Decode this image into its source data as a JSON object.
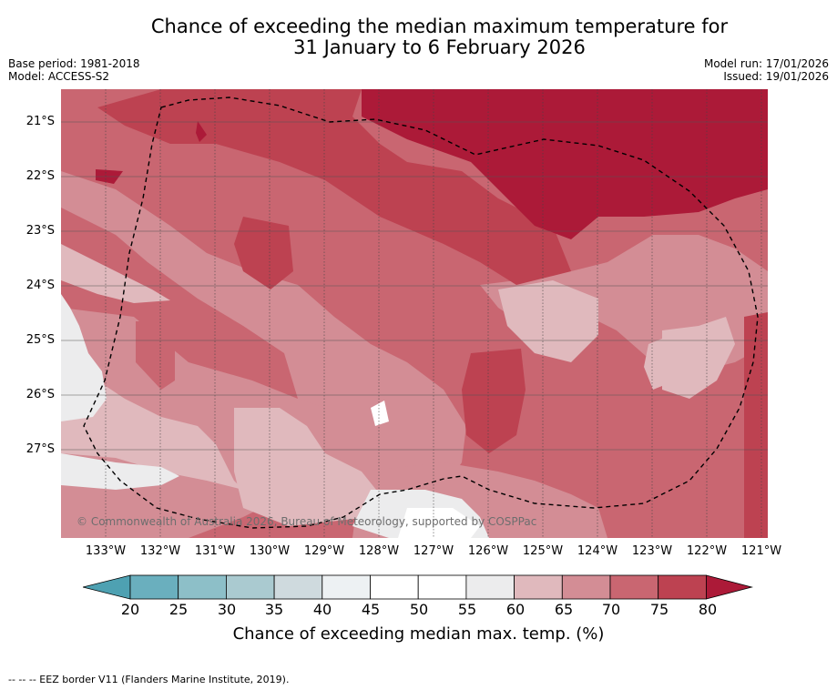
{
  "title_line1": "Chance of exceeding the median maximum temperature for",
  "title_line2": "31 January to 6 February 2026",
  "base_period": "Base period: 1981-2018",
  "model": "Model: ACCESS-S2",
  "model_run": "Model run: 17/01/2026",
  "issued": "Issued: 19/01/2026",
  "copyright": "© Commonwealth of Australia 2026, Bureau of Meteorology, supported by COSPPac",
  "lat_labels": [
    "21°S",
    "22°S",
    "23°S",
    "24°S",
    "25°S",
    "26°S",
    "27°S"
  ],
  "lon_labels": [
    "133°W",
    "132°W",
    "131°W",
    "130°W",
    "129°W",
    "128°W",
    "127°W",
    "126°W",
    "125°W",
    "124°W",
    "123°W",
    "122°W",
    "121°W"
  ],
  "colorbar": {
    "ticks": [
      "20",
      "25",
      "30",
      "35",
      "40",
      "45",
      "50",
      "55",
      "60",
      "65",
      "70",
      "75",
      "80"
    ],
    "colors": [
      "#4ea1b2",
      "#6aafbe",
      "#8dbfc8",
      "#aacad0",
      "#cfdade",
      "#edf1f3",
      "#ffffff",
      "#ffffff",
      "#ececed",
      "#e0b9bd",
      "#d38d95",
      "#c96671",
      "#bd4251",
      "#ac1a38"
    ],
    "label": "Chance of exceeding median max. temp. (%)"
  },
  "footer": "-- -- -- EEZ border V11 (Flanders Marine Institute, 2019)."
}
